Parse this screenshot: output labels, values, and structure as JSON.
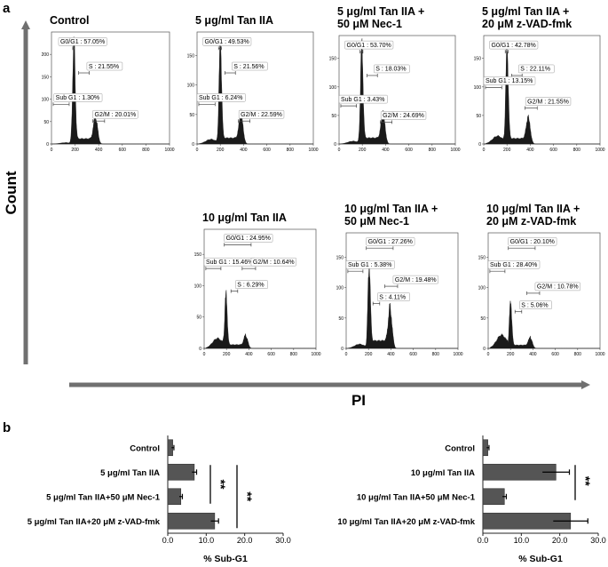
{
  "panel_a": {
    "letter": "a",
    "y_axis_title": "Count",
    "x_axis_title": "PI",
    "histograms": [
      {
        "title_lines": [
          "Control"
        ],
        "y_max": 250,
        "y_ticks": [
          0,
          50,
          100,
          150,
          200
        ],
        "x_ticks": [
          0,
          200,
          400,
          600,
          800,
          1000
        ],
        "gates": {
          "g0g1": "G0/G1 : 57.05%",
          "s": "S : 21.55%",
          "subg1": "Sub G1 : 1.30%",
          "g2m": "G2/M : 20.01%"
        },
        "peaks": {
          "g1_pos": 190,
          "g1_height": 220,
          "g2_pos": 375,
          "g2_height": 55,
          "sub_level": 3
        }
      },
      {
        "title_lines": [
          "5 μg/ml Tan IIA"
        ],
        "y_max": 190,
        "y_ticks": [
          0,
          50,
          100,
          150
        ],
        "x_ticks": [
          0,
          200,
          400,
          600,
          800,
          1000
        ],
        "gates": {
          "g0g1": "G0/G1 : 49.53%",
          "s": "S : 21.56%",
          "subg1": "Sub G1 : 6.24%",
          "g2m": "G2/M : 22.59%"
        },
        "peaks": {
          "g1_pos": 200,
          "g1_height": 170,
          "g2_pos": 380,
          "g2_height": 45,
          "sub_level": 8
        }
      },
      {
        "title_lines": [
          "5 μg/ml Tan IIA +",
          "50 μM Nec-1"
        ],
        "y_max": 190,
        "y_ticks": [
          0,
          50,
          100,
          150
        ],
        "x_ticks": [
          0,
          200,
          400,
          600,
          800,
          1000
        ],
        "gates": {
          "g0g1": "G0/G1 : 53.70%",
          "s": "S : 18.03%",
          "subg1": "Sub G1 : 3.43%",
          "g2m": "G2/M : 24.69%"
        },
        "peaks": {
          "g1_pos": 195,
          "g1_height": 170,
          "g2_pos": 380,
          "g2_height": 48,
          "sub_level": 5
        }
      },
      {
        "title_lines": [
          "5 μg/ml Tan IIA +",
          "20 μM z-VAD-fmk"
        ],
        "y_max": 190,
        "y_ticks": [
          0,
          50,
          100,
          150
        ],
        "x_ticks": [
          0,
          200,
          400,
          600,
          800,
          1000
        ],
        "gates": {
          "g0g1": "G0/G1 : 42.78%",
          "s": "S : 22.11%",
          "subg1": "Sub G1 : 13.15%",
          "g2m": "G2/M : 21.55%"
        },
        "peaks": {
          "g1_pos": 200,
          "g1_height": 165,
          "g2_pos": 385,
          "g2_height": 42,
          "sub_level": 14
        }
      },
      {
        "title_lines": [
          "10 μg/ml Tan IIA"
        ],
        "y_max": 190,
        "y_ticks": [
          0,
          50,
          100,
          150
        ],
        "x_ticks": [
          0,
          200,
          400,
          600,
          800,
          1000
        ],
        "gates": {
          "g0g1": "G0/G1 : 24.95%",
          "subg1": "Sub G1 : 15.46%",
          "g2m": "G2/M : 10.64%",
          "s": "S : 6.29%"
        },
        "peaks": {
          "g1_pos": 195,
          "g1_height": 85,
          "g2_pos": 375,
          "g2_height": 18,
          "sub_level": 16
        }
      },
      {
        "title_lines": [
          "10 μg/ml Tan IIA +",
          "50 μM Nec-1"
        ],
        "y_max": 190,
        "y_ticks": [
          0,
          50,
          100,
          150
        ],
        "x_ticks": [
          0,
          200,
          400,
          600,
          800,
          1000
        ],
        "gates": {
          "g0g1": "G0/G1 : 27.26%",
          "subg1": "Sub G1 : 5.38%",
          "g2m": "G2/M : 19.48%",
          "s": "S : 4.11%"
        },
        "peaks": {
          "g1_pos": 205,
          "g1_height": 135,
          "g2_pos": 395,
          "g2_height": 60,
          "sub_level": 7
        }
      },
      {
        "title_lines": [
          "10 μg/ml Tan IIA +",
          "20 μM z-VAD-fmk"
        ],
        "y_max": 190,
        "y_ticks": [
          0,
          50,
          100,
          150
        ],
        "x_ticks": [
          0,
          200,
          400,
          600,
          800,
          1000
        ],
        "gates": {
          "g0g1": "G0/G1 : 20.10%",
          "subg1": "Sub G1 : 28.40%",
          "g2m": "G2/M : 10.78%",
          "s": "S : 5.06%"
        },
        "peaks": {
          "g1_pos": 200,
          "g1_height": 75,
          "g2_pos": 380,
          "g2_height": 15,
          "sub_level": 22
        }
      }
    ]
  },
  "panel_b": {
    "letter": "b"
  },
  "chart_data": [
    {
      "type": "bar",
      "orientation": "horizontal",
      "categories": [
        "Control",
        "5 μg/ml Tan IIA",
        "5 μg/ml Tan IIA+50 μM Nec-1",
        "5 μg/ml Tan IIA+20 μM z-VAD-fmk"
      ],
      "values": [
        1.3,
        6.9,
        3.4,
        12.2
      ],
      "errors": [
        0.3,
        0.6,
        0.4,
        1.0
      ],
      "xlabel": "% Sub-G1",
      "xlim": [
        0,
        30
      ],
      "x_ticks": [
        "0.0",
        "10.0",
        "20.0",
        "30.0"
      ],
      "significance": [
        "**",
        "**"
      ]
    },
    {
      "type": "bar",
      "orientation": "horizontal",
      "categories": [
        "Control",
        "10 μg/ml Tan IIA",
        "10 μg/ml Tan IIA+50 μM Nec-1",
        "10 μg/ml Tan IIA+20 μM z-VAD-fmk"
      ],
      "values": [
        1.3,
        19.0,
        5.6,
        22.8
      ],
      "errors": [
        0.3,
        3.5,
        0.5,
        4.5
      ],
      "xlabel": "% Sub-G1",
      "xlim": [
        0,
        30
      ],
      "x_ticks": [
        "0.0",
        "10.0",
        "20.0",
        "30.0"
      ],
      "significance": [
        "**"
      ]
    }
  ]
}
